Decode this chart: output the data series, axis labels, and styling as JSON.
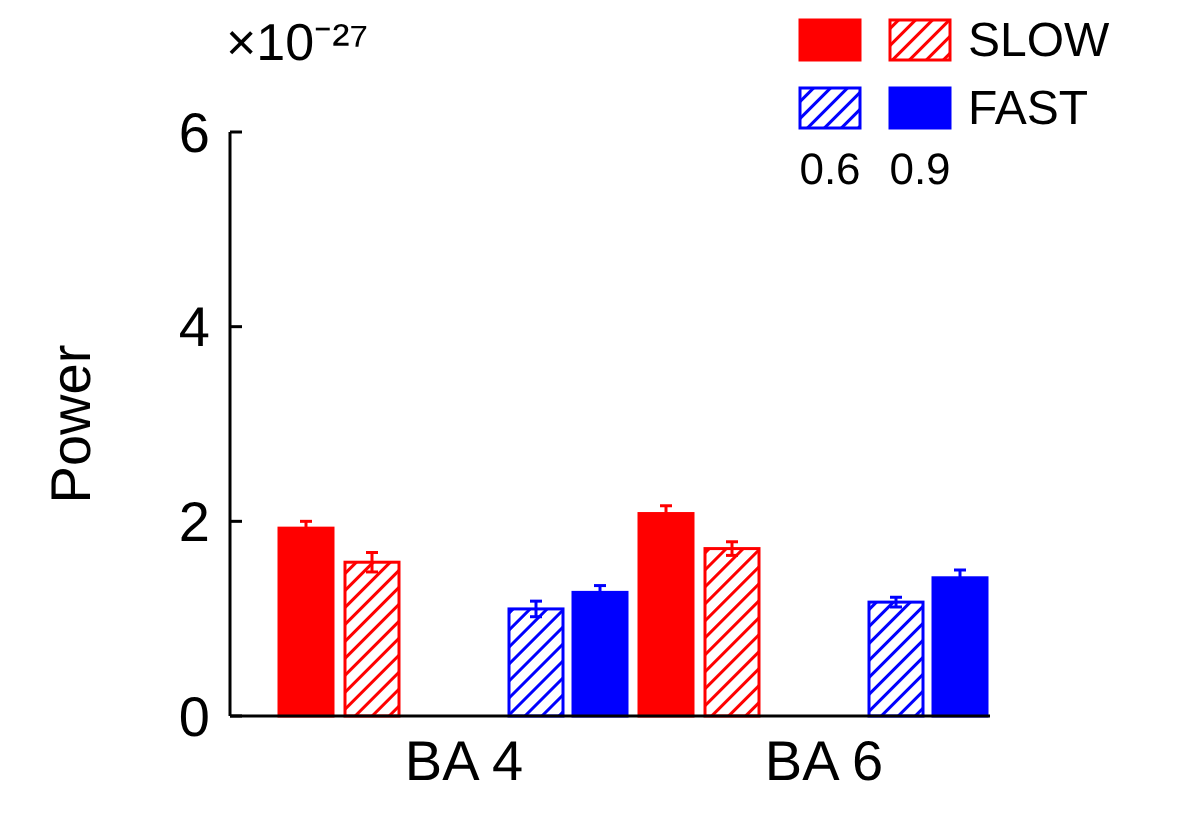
{
  "chart_data": {
    "type": "bar",
    "ylabel": "Power",
    "categories": [
      "BA 4",
      "BA 6"
    ],
    "series": [
      {
        "color": "#ff0000",
        "values": [
          1.93,
          2.08
        ],
        "errors": [
          0.07,
          0.08
        ]
      },
      {
        "name": "SLOW",
        "color": "#ff0000",
        "values": [
          1.58,
          1.72
        ],
        "errors": [
          0.1,
          0.07
        ]
      },
      {
        "color": "#0000ff",
        "values": [
          1.1,
          1.17
        ],
        "errors": [
          0.08,
          0.05
        ]
      },
      {
        "name": "FAST",
        "color": "#0000ff",
        "values": [
          1.27,
          1.42
        ],
        "errors": [
          0.07,
          0.08
        ]
      }
    ],
    "ylim": [
      0,
      6
    ],
    "yticks": [
      0,
      2,
      4,
      6
    ],
    "grid": false,
    "legend": "top right",
    "annotations": [
      "×10⁻²⁷",
      "0.6",
      "0.9"
    ]
  }
}
